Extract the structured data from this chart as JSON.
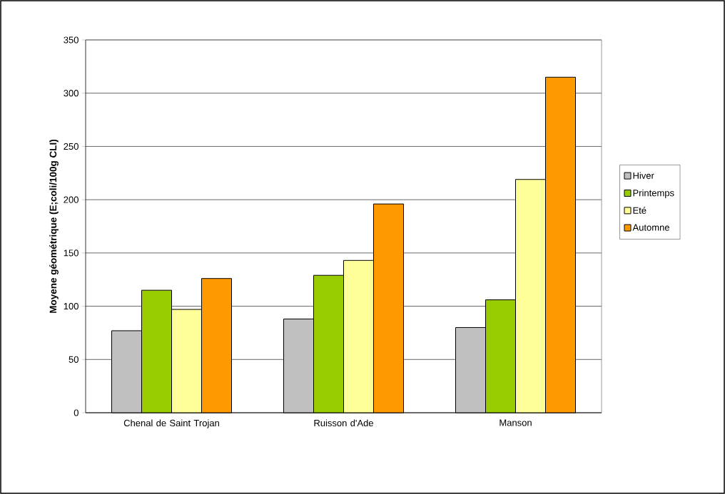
{
  "chart_data": {
    "type": "bar",
    "ylabel": "Moyene géométrique (E;coli/100g CLI)",
    "categories": [
      "Chenal de Saint Trojan",
      "Ruisson d'Ade",
      "Manson"
    ],
    "series": [
      {
        "name": "Hiver",
        "color": "#c0c0c0",
        "values": [
          77,
          88,
          80
        ]
      },
      {
        "name": "Printemps",
        "color": "#99cc00",
        "values": [
          115,
          129,
          106
        ]
      },
      {
        "name": "Eté",
        "color": "#ffff99",
        "values": [
          97,
          143,
          219
        ]
      },
      {
        "name": "Automne",
        "color": "#ff9900",
        "values": [
          126,
          196,
          315
        ]
      }
    ],
    "ylim": [
      0,
      350
    ],
    "yticks": [
      0,
      50,
      100,
      150,
      200,
      250,
      300,
      350
    ],
    "grid": "y",
    "legend": "right"
  }
}
